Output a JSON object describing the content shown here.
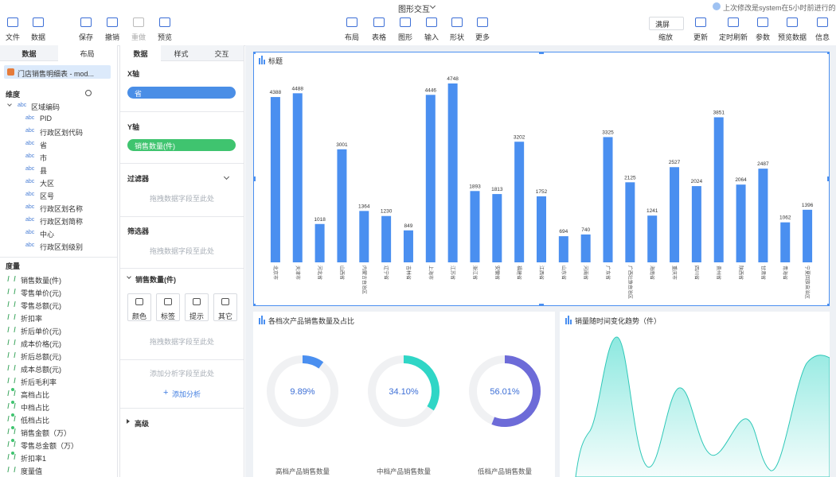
{
  "header": {
    "title": "图形交互",
    "status": "上次修改是system在5小时前进行的"
  },
  "toolbar": {
    "left": [
      "文件",
      "数据",
      "保存",
      "撤销",
      "重做",
      "预览"
    ],
    "center": [
      "布局",
      "表格",
      "图形",
      "输入",
      "形状",
      "更多"
    ],
    "zoom": "满屏",
    "right": [
      "缩放",
      "更新",
      "定时刷新",
      "参数",
      "预览数据",
      "信息"
    ]
  },
  "left_panel": {
    "tabs": [
      "数据",
      "布局"
    ],
    "dataset": "门店销售明细表 - mod...",
    "dimension_title": "维度",
    "dimension_group": "区域编码",
    "type_tag": "abc",
    "dimensions": [
      "PID",
      "行政区划代码",
      "省",
      "市",
      "县",
      "大区",
      "区号",
      "行政区划名称",
      "行政区划简称",
      "中心",
      "行政区划级别"
    ],
    "measure_title": "度量",
    "measures": [
      "销售数量(件)",
      "零售单价(元)",
      "零售总额(元)",
      "折扣率",
      "折后单价(元)",
      "成本价格(元)",
      "折后总额(元)",
      "成本总额(元)",
      "折后毛利率",
      "高档占比",
      "中档占比",
      "低档占比",
      "销售金额（万）",
      "零售总金额（万）",
      "折扣率1",
      "度量值"
    ]
  },
  "mid_panel": {
    "tabs": [
      "数据",
      "样式",
      "交互"
    ],
    "x_axis": "X轴",
    "x_field": "省",
    "y_axis": "Y轴",
    "y_field": "销售数量(件)",
    "filter": "过滤器",
    "filter_hint": "拖拽数据字段至此处",
    "selector": "筛选器",
    "selector_hint": "拖拽数据字段至此处",
    "measure_section": "销售数量(件)",
    "buttons": [
      "颜色",
      "标签",
      "提示",
      "其它"
    ],
    "drop_hint": "拖拽数据字段至此处",
    "analysis_hint": "添加分析字段至此处",
    "add_analysis": "添加分析",
    "advanced": "高级"
  },
  "chart_data": [
    {
      "type": "bar",
      "title": "标题",
      "color": "#4a8ff0",
      "categories": [
        "北京市",
        "天津市",
        "河北省",
        "山西省",
        "内蒙古自治区",
        "辽宁省",
        "吉林省",
        "上海市",
        "江苏省",
        "浙江省",
        "安徽省",
        "福建省",
        "江西省",
        "山东省",
        "河南省",
        "广东省",
        "广西壮族自治区",
        "海南省",
        "重庆市",
        "四川省",
        "贵州省",
        "陕西省",
        "甘肃省",
        "青海省",
        "宁夏回族自治区"
      ],
      "values": [
        4388,
        4488,
        1018,
        3001,
        1364,
        1230,
        849,
        4446,
        4748,
        1893,
        1813,
        3202,
        1752,
        694,
        740,
        3325,
        2125,
        1241,
        2527,
        2024,
        3851,
        2064,
        2487,
        1062,
        1396
      ]
    },
    {
      "type": "donut",
      "title": "各档次产品销售数量及占比",
      "categories": [
        "高档产品销售数量",
        "中档产品销售数量",
        "低档产品销售数量"
      ],
      "values": [
        9.89,
        34.1,
        56.01
      ],
      "value_labels": [
        "9.89%",
        "34.10%",
        "56.01%"
      ],
      "colors": [
        "#4a8ff0",
        "#2fd6c6",
        "#6d6bd8"
      ]
    }
  ],
  "trend_chart": {
    "title": "销量随时间变化趋势（件）"
  }
}
